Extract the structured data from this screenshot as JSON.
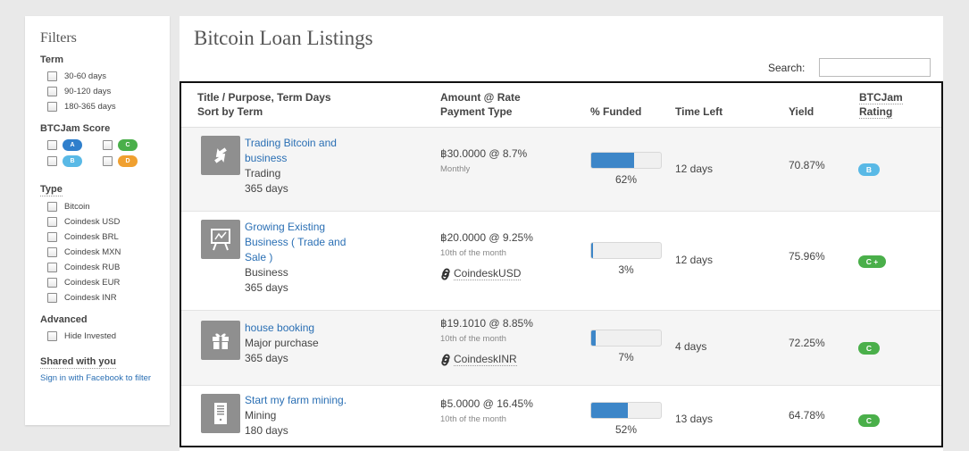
{
  "sidebar": {
    "title": "Filters",
    "term": {
      "heading": "Term",
      "options": [
        "30-60 days",
        "90-120 days",
        "180-365 days"
      ]
    },
    "score": {
      "heading": "BTCJam Score",
      "grades": [
        "A",
        "C",
        "B",
        "D"
      ]
    },
    "type": {
      "heading": "Type",
      "options": [
        "Bitcoin",
        "Coindesk USD",
        "Coindesk BRL",
        "Coindesk MXN",
        "Coindesk RUB",
        "Coindesk EUR",
        "Coindesk INR"
      ]
    },
    "advanced": {
      "heading": "Advanced",
      "options": [
        "Hide Invested"
      ]
    },
    "shared": {
      "heading": "Shared with you",
      "link": "Sign in with Facebook to filter"
    }
  },
  "main": {
    "title": "Bitcoin Loan Listings",
    "search_label": "Search:",
    "search_value": "",
    "columns": {
      "title_line1": "Title / Purpose, Term Days",
      "title_line2": "Sort by Term",
      "amount_line1": "Amount @ Rate",
      "amount_line2": "Payment Type",
      "funded": "% Funded",
      "time_left": "Time Left",
      "yield": "Yield",
      "rating_line1": "BTCJam",
      "rating_line2": "Rating"
    },
    "rows": [
      {
        "icon": "exchange-arrows-icon",
        "title": "Trading Bitcoin and business",
        "purpose": "Trading",
        "term": "365 days",
        "amount_rate": "฿30.0000 @ 8.7%",
        "schedule": "Monthly",
        "payment_type": "",
        "funded_pct": 62,
        "funded_label": "62%",
        "time_left": "12 days",
        "yield": "70.87%",
        "rating": "B",
        "rating_color": "#59b9e6"
      },
      {
        "icon": "presentation-board-icon",
        "title": "Growing Existing Business ( Trade and Sale )",
        "purpose": "Business",
        "term": "365 days",
        "amount_rate": "฿20.0000 @ 9.25%",
        "schedule": "10th of the month",
        "payment_type": "CoindeskUSD",
        "funded_pct": 3,
        "funded_label": "3%",
        "time_left": "12 days",
        "yield": "75.96%",
        "rating": "C +",
        "rating_color": "#4aaf4a"
      },
      {
        "icon": "gift-icon",
        "title": "house booking",
        "purpose": "Major purchase",
        "term": "365 days",
        "amount_rate": "฿19.1010 @ 8.85%",
        "schedule": "10th of the month",
        "payment_type": "CoindeskINR",
        "funded_pct": 7,
        "funded_label": "7%",
        "time_left": "4 days",
        "yield": "72.25%",
        "rating": "C",
        "rating_color": "#4aaf4a"
      },
      {
        "icon": "server-tower-icon",
        "title": "Start my farm mining.",
        "purpose": "Mining",
        "term": "180 days",
        "amount_rate": "฿5.0000 @ 16.45%",
        "schedule": "10th of the month",
        "payment_type": "",
        "funded_pct": 52,
        "funded_label": "52%",
        "time_left": "13 days",
        "yield": "64.78%",
        "rating": "C",
        "rating_color": "#4aaf4a"
      }
    ]
  }
}
